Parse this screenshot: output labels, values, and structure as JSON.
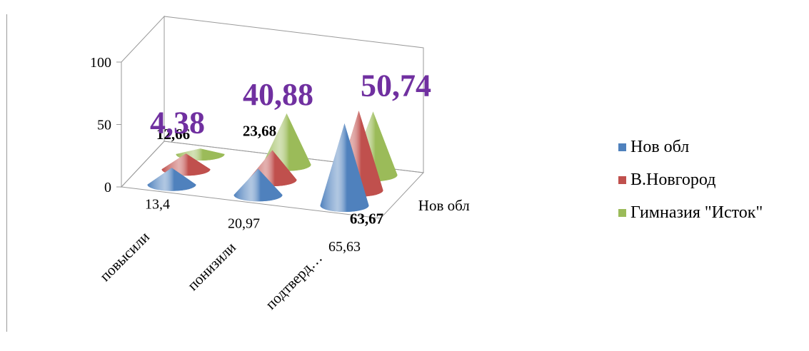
{
  "chart_data": {
    "type": "bar",
    "style": "3d-cone",
    "categories": [
      "повысили",
      "понизили",
      "подтверд…"
    ],
    "series": [
      {
        "name": "Нов обл",
        "values": [
          13.4,
          20.97,
          65.63
        ],
        "labels": [
          "13,4",
          "20,97",
          "65,63"
        ],
        "color": "#4f81bd"
      },
      {
        "name": "В.Новгород",
        "values": [
          12.66,
          23.68,
          63.67
        ],
        "labels": [
          "12,66",
          "23,68",
          "63,67"
        ],
        "color": "#c0504d"
      },
      {
        "name": "Гимназия \"Исток\"",
        "values": [
          4.38,
          40.88,
          50.74
        ],
        "labels": [
          "4,38",
          "40,88",
          "50,74"
        ],
        "color": "#9bbb59"
      }
    ],
    "depth_axis_label": "Нов обл",
    "ylim": [
      0,
      100
    ],
    "yticks": [
      "0",
      "50",
      "100"
    ],
    "legend_position": "right",
    "grid": false
  }
}
